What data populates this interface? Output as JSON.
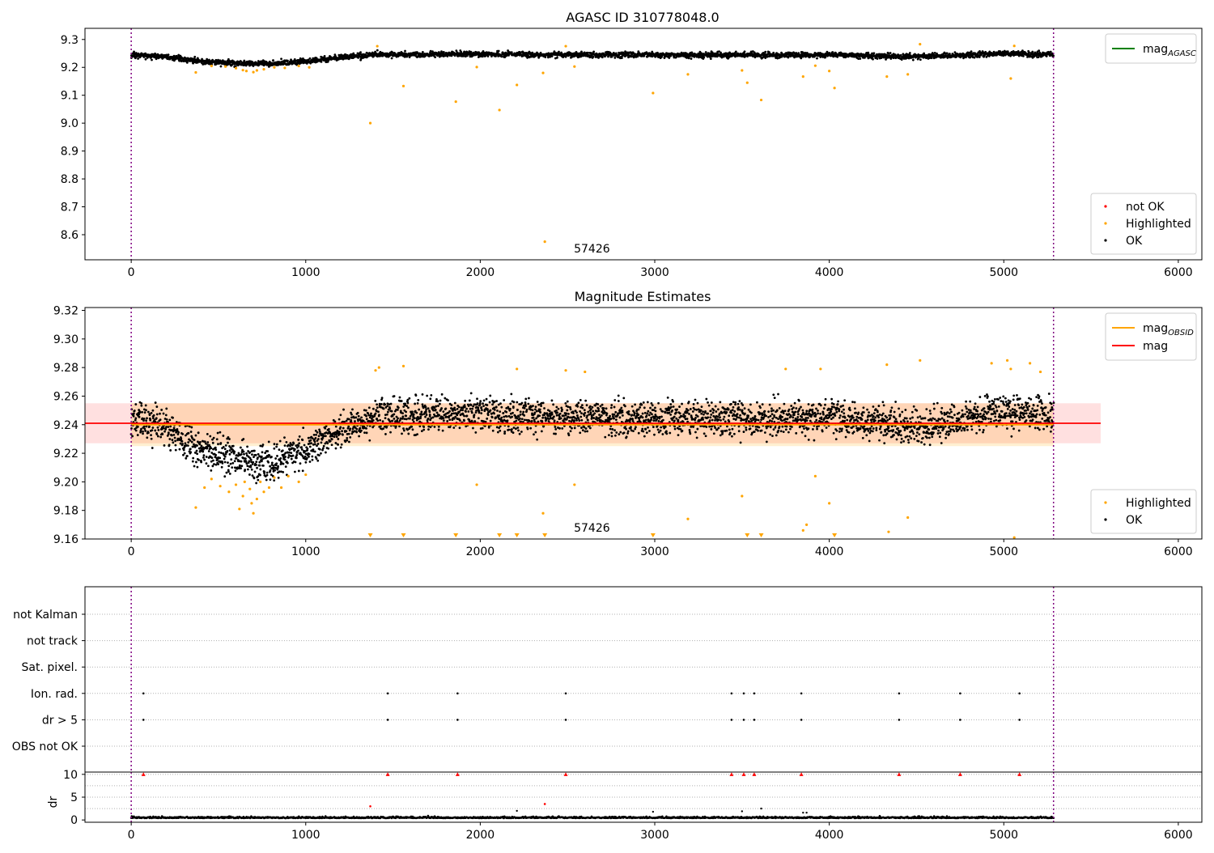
{
  "chart_data": [
    {
      "type": "scatter",
      "title": "AGASC ID 310778048.0",
      "xlim": [
        -265,
        6135
      ],
      "ylim": [
        8.51,
        9.34
      ],
      "xticks": [
        0,
        1000,
        2000,
        3000,
        4000,
        5000,
        6000
      ],
      "yticks": [
        8.6,
        8.7,
        8.8,
        8.9,
        9.0,
        9.1,
        9.2,
        9.3
      ],
      "annotation": "57426",
      "annotation_x": 2640,
      "vlines": [
        0,
        5285
      ],
      "line_legend": [
        {
          "label": "mag",
          "sub": "AGASC",
          "color": "#008000"
        }
      ],
      "legend": [
        {
          "label": "not OK",
          "color": "#ff0000"
        },
        {
          "label": "Highlighted",
          "color": "#ffa500"
        },
        {
          "label": "OK",
          "color": "#000000"
        }
      ],
      "ok_trend": [
        [
          0,
          9.244
        ],
        [
          200,
          9.238
        ],
        [
          400,
          9.222
        ],
        [
          600,
          9.215
        ],
        [
          800,
          9.213
        ],
        [
          1000,
          9.222
        ],
        [
          1200,
          9.235
        ],
        [
          1400,
          9.246
        ],
        [
          2000,
          9.247
        ],
        [
          3000,
          9.244
        ],
        [
          4000,
          9.245
        ],
        [
          4500,
          9.238
        ],
        [
          5000,
          9.25
        ],
        [
          5285,
          9.246
        ]
      ],
      "highlighted_points": [
        [
          370,
          9.182
        ],
        [
          460,
          9.205
        ],
        [
          540,
          9.203
        ],
        [
          600,
          9.197
        ],
        [
          640,
          9.19
        ],
        [
          660,
          9.187
        ],
        [
          700,
          9.183
        ],
        [
          720,
          9.189
        ],
        [
          760,
          9.193
        ],
        [
          820,
          9.2
        ],
        [
          880,
          9.198
        ],
        [
          960,
          9.205
        ],
        [
          1020,
          9.2
        ],
        [
          1370,
          9.0
        ],
        [
          1410,
          9.276
        ],
        [
          1560,
          9.133
        ],
        [
          1860,
          9.077
        ],
        [
          1980,
          9.201
        ],
        [
          2110,
          9.047
        ],
        [
          2210,
          9.137
        ],
        [
          2360,
          9.18
        ],
        [
          2370,
          8.575
        ],
        [
          2490,
          9.276
        ],
        [
          2540,
          9.203
        ],
        [
          2990,
          9.108
        ],
        [
          3190,
          9.175
        ],
        [
          3500,
          9.189
        ],
        [
          3530,
          9.145
        ],
        [
          3610,
          9.083
        ],
        [
          3850,
          9.167
        ],
        [
          3920,
          9.206
        ],
        [
          4000,
          9.187
        ],
        [
          4030,
          9.126
        ],
        [
          4330,
          9.167
        ],
        [
          4450,
          9.175
        ],
        [
          4520,
          9.283
        ],
        [
          5040,
          9.16
        ],
        [
          5060,
          9.277
        ]
      ],
      "notok_points": []
    },
    {
      "type": "scatter",
      "title": "Magnitude Estimates",
      "xlim": [
        -265,
        6135
      ],
      "ylim": [
        9.16,
        9.322
      ],
      "xticks": [
        0,
        1000,
        2000,
        3000,
        4000,
        5000,
        6000
      ],
      "yticks": [
        9.16,
        9.18,
        9.2,
        9.22,
        9.24,
        9.26,
        9.28,
        9.3,
        9.32
      ],
      "annotation": "57426",
      "annotation_x": 2640,
      "vlines": [
        0,
        5285
      ],
      "line_legend": [
        {
          "label": "mag",
          "sub": "OBSID",
          "color": "#ffa500"
        },
        {
          "label": "mag",
          "sub": "",
          "color": "#ff0000"
        }
      ],
      "legend": [
        {
          "label": "Highlighted",
          "color": "#ffa500"
        },
        {
          "label": "OK",
          "color": "#000000"
        }
      ],
      "mag": 9.241,
      "mag_band": [
        9.227,
        9.255
      ],
      "mag_x": [
        -265,
        5555
      ],
      "mag_obsid": 9.24,
      "mag_obsid_band": [
        9.225,
        9.255
      ],
      "mag_obsid_x": [
        0,
        5285
      ],
      "ok_trend": [
        [
          0,
          9.244
        ],
        [
          200,
          9.238
        ],
        [
          400,
          9.222
        ],
        [
          600,
          9.215
        ],
        [
          800,
          9.213
        ],
        [
          1000,
          9.222
        ],
        [
          1200,
          9.235
        ],
        [
          1400,
          9.246
        ],
        [
          2000,
          9.247
        ],
        [
          3000,
          9.244
        ],
        [
          4000,
          9.245
        ],
        [
          4500,
          9.238
        ],
        [
          5000,
          9.25
        ],
        [
          5285,
          9.246
        ]
      ],
      "highlighted_points": [
        [
          370,
          9.182
        ],
        [
          420,
          9.196
        ],
        [
          460,
          9.202
        ],
        [
          510,
          9.197
        ],
        [
          560,
          9.193
        ],
        [
          600,
          9.198
        ],
        [
          620,
          9.181
        ],
        [
          640,
          9.19
        ],
        [
          650,
          9.2
        ],
        [
          680,
          9.195
        ],
        [
          690,
          9.185
        ],
        [
          700,
          9.178
        ],
        [
          720,
          9.188
        ],
        [
          740,
          9.2
        ],
        [
          760,
          9.193
        ],
        [
          790,
          9.196
        ],
        [
          820,
          9.203
        ],
        [
          860,
          9.196
        ],
        [
          900,
          9.204
        ],
        [
          960,
          9.2
        ],
        [
          1000,
          9.205
        ],
        [
          1400,
          9.278
        ],
        [
          1420,
          9.28
        ],
        [
          1560,
          9.281
        ],
        [
          1980,
          9.198
        ],
        [
          2210,
          9.279
        ],
        [
          2360,
          9.178
        ],
        [
          2490,
          9.278
        ],
        [
          2540,
          9.198
        ],
        [
          2600,
          9.277
        ],
        [
          3190,
          9.174
        ],
        [
          3500,
          9.19
        ],
        [
          3750,
          9.279
        ],
        [
          3850,
          9.166
        ],
        [
          3870,
          9.17
        ],
        [
          3920,
          9.204
        ],
        [
          3950,
          9.279
        ],
        [
          4000,
          9.185
        ],
        [
          4330,
          9.282
        ],
        [
          4340,
          9.165
        ],
        [
          4450,
          9.175
        ],
        [
          4520,
          9.285
        ],
        [
          4930,
          9.283
        ],
        [
          5020,
          9.285
        ],
        [
          5040,
          9.279
        ],
        [
          5060,
          9.161
        ],
        [
          5150,
          9.283
        ],
        [
          5210,
          9.277
        ]
      ],
      "below_range_markers": [
        1370,
        1560,
        1860,
        2110,
        2210,
        2370,
        2990,
        3530,
        3610,
        4030
      ]
    },
    {
      "type": "scatter",
      "title": "",
      "xlim": [
        -265,
        6135
      ],
      "xticks": [
        0,
        1000,
        2000,
        3000,
        4000,
        5000,
        6000
      ],
      "flag_categories": [
        "not Kalman",
        "not track",
        "Sat. pixel.",
        "Ion. rad.",
        "dr > 5",
        "OBS not OK"
      ],
      "flag_points": [
        {
          "flag": "Ion. rad.",
          "x": [
            70,
            1470,
            1870,
            2490,
            3440,
            3510,
            3570,
            3840,
            4400,
            4750,
            5090
          ]
        },
        {
          "flag": "dr > 5",
          "x": [
            70,
            1470,
            1870,
            2490,
            3440,
            3510,
            3570,
            3840,
            4400,
            4750,
            5090
          ]
        }
      ],
      "vlines": [
        0,
        5285
      ]
    },
    {
      "type": "scatter",
      "title": "",
      "ylabel": "dr",
      "xlim": [
        -265,
        6135
      ],
      "ylim": [
        -0.5,
        10.5
      ],
      "xticks": [
        0,
        1000,
        2000,
        3000,
        4000,
        5000,
        6000
      ],
      "yticks": [
        0,
        5,
        10
      ],
      "vlines": [
        0,
        5285
      ],
      "clipped_markers": [
        70,
        1470,
        1870,
        2490,
        3440,
        3510,
        3570,
        3840,
        4400,
        4750,
        5090
      ],
      "red_points": [
        [
          1370,
          3.0
        ],
        [
          2370,
          3.5
        ]
      ],
      "black_points": [
        [
          2210,
          2.0
        ],
        [
          2990,
          1.8
        ],
        [
          3500,
          1.9
        ],
        [
          3610,
          2.5
        ],
        [
          3850,
          1.6
        ],
        [
          3870,
          1.6
        ]
      ],
      "trend": 0.4
    }
  ]
}
